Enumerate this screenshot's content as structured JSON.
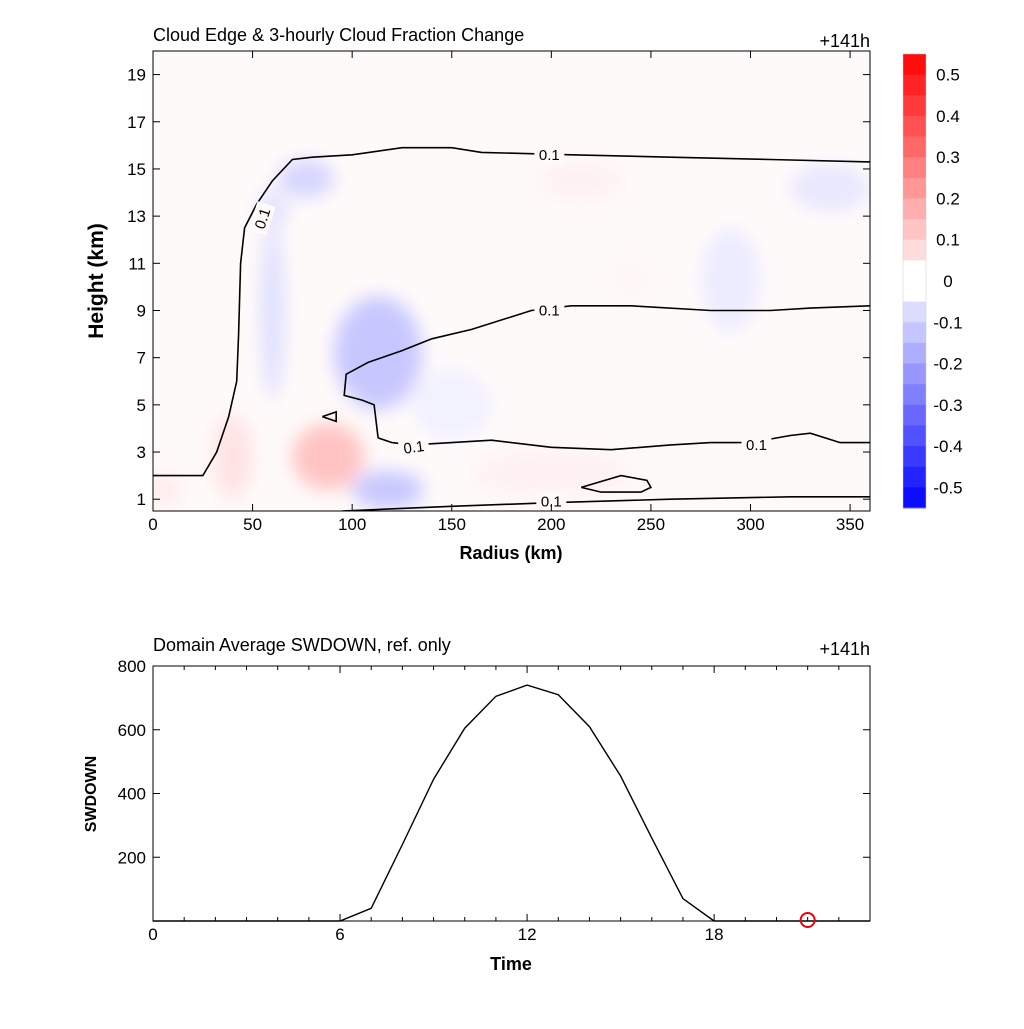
{
  "chart_data": [
    {
      "type": "heatmap",
      "title": "Cloud Edge & 3-hourly Cloud Fraction Change",
      "time_label": "+141h",
      "xlabel": "Radius (km)",
      "ylabel": "Height (km)",
      "xlim": [
        0,
        360
      ],
      "ylim": [
        0.5,
        20
      ],
      "x_ticks": [
        "0",
        "50",
        "100",
        "150",
        "200",
        "250",
        "300",
        "350"
      ],
      "x_tick_values": [
        0,
        50,
        100,
        150,
        200,
        250,
        300,
        350
      ],
      "y_ticks": [
        "1",
        "3",
        "5",
        "7",
        "9",
        "11",
        "13",
        "15",
        "17",
        "19"
      ],
      "y_tick_values": [
        1,
        3,
        5,
        7,
        9,
        11,
        13,
        15,
        17,
        19
      ],
      "colorbar": {
        "range": [
          -0.55,
          0.55
        ],
        "step": 0.05,
        "labels": [
          "0.5",
          "0.4",
          "0.3",
          "0.2",
          "0.1",
          "0",
          "-0.1",
          "-0.2",
          "-0.3",
          "-0.4",
          "-0.5"
        ],
        "label_values": [
          0.5,
          0.4,
          0.3,
          0.2,
          0.1,
          0,
          -0.1,
          -0.2,
          -0.3,
          -0.4,
          -0.5
        ],
        "positive_color": "#ff0000",
        "negative_color": "#0000ff",
        "zero_color": "#ffffff"
      },
      "anomalies": [
        {
          "x": 88,
          "y": 2.8,
          "rx": 18,
          "ry": 1.4,
          "value": 0.13
        },
        {
          "x": 40,
          "y": 2.8,
          "rx": 10,
          "ry": 1.8,
          "value": 0.06
        },
        {
          "x": 5,
          "y": 1.4,
          "rx": 10,
          "ry": 0.7,
          "value": 0.04
        },
        {
          "x": 200,
          "y": 2.1,
          "rx": 40,
          "ry": 1.0,
          "value": 0.03
        },
        {
          "x": 215,
          "y": 14.5,
          "rx": 22,
          "ry": 0.8,
          "value": 0.03
        },
        {
          "x": 240,
          "y": 10.4,
          "rx": 10,
          "ry": 0.8,
          "value": 0.02
        },
        {
          "x": 113,
          "y": 7.2,
          "rx": 22,
          "ry": 2.4,
          "value": -0.12
        },
        {
          "x": 118,
          "y": 1.4,
          "rx": 18,
          "ry": 0.8,
          "value": -0.12
        },
        {
          "x": 60,
          "y": 9.0,
          "rx": 6,
          "ry": 3.8,
          "value": -0.07
        },
        {
          "x": 77,
          "y": 14.6,
          "rx": 14,
          "ry": 0.8,
          "value": -0.09
        },
        {
          "x": 60,
          "y": 13.3,
          "rx": 8,
          "ry": 0.8,
          "value": -0.06
        },
        {
          "x": 340,
          "y": 14.2,
          "rx": 20,
          "ry": 1.0,
          "value": -0.05
        },
        {
          "x": 290,
          "y": 10.3,
          "rx": 15,
          "ry": 2.2,
          "value": -0.04
        },
        {
          "x": 150,
          "y": 5.0,
          "rx": 20,
          "ry": 1.5,
          "value": -0.03
        }
      ],
      "contours": [
        {
          "level_label": "0.1",
          "label_at": [
            55,
            12.9
          ],
          "label_angle": -72,
          "points": [
            [
              0,
              2
            ],
            [
              25,
              2
            ],
            [
              32,
              3
            ],
            [
              38,
              4.5
            ],
            [
              42,
              6
            ],
            [
              43,
              8
            ],
            [
              44,
              11
            ],
            [
              46,
              12.5
            ],
            [
              52,
              13.5
            ],
            [
              60,
              14.5
            ],
            [
              70,
              15.4
            ],
            [
              80,
              15.5
            ],
            [
              100,
              15.6
            ],
            [
              125,
              15.9
            ],
            [
              150,
              15.9
            ],
            [
              165,
              15.7
            ],
            [
              210,
              15.6
            ],
            [
              260,
              15.5
            ],
            [
              310,
              15.4
            ],
            [
              360,
              15.3
            ]
          ]
        },
        {
          "level_label": "0.1",
          "label_at": [
            199,
            15.6
          ],
          "label_angle": 0,
          "points": []
        },
        {
          "level_label": "0.1",
          "label_at": [
            199,
            9.0
          ],
          "label_angle": 0,
          "points": [
            [
              113,
              3.6
            ],
            [
              111,
              5
            ],
            [
              105,
              5.2
            ],
            [
              96,
              5.4
            ],
            [
              97,
              6.3
            ],
            [
              108,
              6.8
            ],
            [
              125,
              7.3
            ],
            [
              140,
              7.8
            ],
            [
              160,
              8.2
            ],
            [
              190,
              9.0
            ],
            [
              210,
              9.2
            ],
            [
              240,
              9.2
            ],
            [
              280,
              9.0
            ],
            [
              310,
              9.0
            ],
            [
              330,
              9.1
            ],
            [
              360,
              9.2
            ]
          ]
        },
        {
          "level_label": "0.1",
          "label_at": [
            131,
            3.2
          ],
          "label_angle": -8,
          "points": [
            [
              113,
              3.6
            ],
            [
              120,
              3.4
            ],
            [
              130,
              3.3
            ],
            [
              150,
              3.4
            ],
            [
              170,
              3.5
            ],
            [
              200,
              3.2
            ],
            [
              230,
              3.1
            ],
            [
              260,
              3.3
            ],
            [
              280,
              3.4
            ],
            [
              300,
              3.4
            ],
            [
              320,
              3.7
            ],
            [
              330,
              3.8
            ],
            [
              345,
              3.4
            ],
            [
              360,
              3.4
            ]
          ]
        },
        {
          "level_label": "0.1",
          "label_at": [
            303,
            3.3
          ],
          "label_angle": 0,
          "points": []
        },
        {
          "level_label": "0.1",
          "label_at": [
            200,
            0.9
          ],
          "label_angle": 0,
          "points": [
            [
              95,
              0.5
            ],
            [
              150,
              0.7
            ],
            [
              200,
              0.85
            ],
            [
              260,
              1.0
            ],
            [
              320,
              1.1
            ],
            [
              360,
              1.1
            ]
          ]
        },
        {
          "level_label": "",
          "points": [
            [
              215,
              1.5
            ],
            [
              235,
              2.0
            ],
            [
              248,
              1.8
            ],
            [
              250,
              1.5
            ],
            [
              245,
              1.3
            ],
            [
              225,
              1.3
            ],
            [
              215,
              1.5
            ]
          ]
        },
        {
          "level_label": "",
          "points": [
            [
              85,
              4.5
            ],
            [
              92,
              4.7
            ],
            [
              92,
              4.3
            ],
            [
              85,
              4.5
            ]
          ]
        }
      ]
    },
    {
      "type": "line",
      "title": "Domain Average SWDOWN, ref. only",
      "time_label": "+141h",
      "xlabel": "Time",
      "ylabel": "SWDOWN",
      "xlim": [
        0,
        23
      ],
      "ylim": [
        0,
        800
      ],
      "x_ticks": [
        "0",
        "6",
        "12",
        "18"
      ],
      "x_tick_values": [
        0,
        6,
        12,
        18
      ],
      "y_ticks": [
        "200",
        "400",
        "600",
        "800"
      ],
      "y_tick_values": [
        200,
        400,
        600,
        800
      ],
      "x": [
        0,
        1,
        2,
        3,
        4,
        5,
        6,
        7,
        8,
        9,
        10,
        11,
        12,
        13,
        14,
        15,
        16,
        17,
        18,
        19,
        20,
        21,
        22,
        23
      ],
      "values": [
        0,
        0,
        0,
        0,
        0,
        0,
        0,
        40,
        240,
        445,
        605,
        705,
        740,
        710,
        610,
        455,
        260,
        70,
        0,
        0,
        0,
        0,
        0,
        0
      ],
      "marker": {
        "x": 21,
        "y": 0,
        "color": "#e8000b"
      }
    }
  ]
}
